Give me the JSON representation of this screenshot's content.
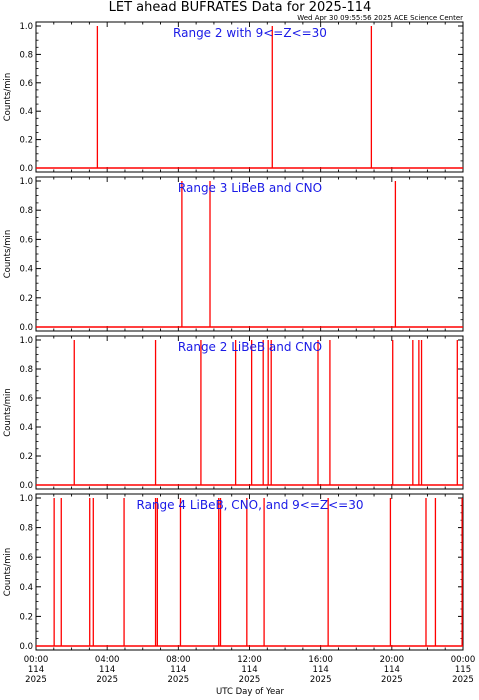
{
  "header": {
    "title": "LET ahead BUFRATES Data for 2025-114",
    "stamp": "Wed Apr 30 09:55:56 2025 ACE Science Center"
  },
  "colors": {
    "series": "#ff0000",
    "panel_title": "#1a1ae6",
    "axes": "#000000"
  },
  "chart_data": [
    {
      "type": "line",
      "title": "Range 2 with 9<=Z<=30",
      "ylabel": "Counts/min",
      "ylim": [
        0,
        1.0
      ],
      "yticks": [
        "0.0",
        "0.2",
        "0.4",
        "0.6",
        "0.8",
        "1.0"
      ],
      "xlim": [
        0,
        24
      ],
      "spikes_hours": [
        3.45,
        13.28,
        18.85
      ]
    },
    {
      "type": "line",
      "title": "Range 3 LiBeB and CNO",
      "ylabel": "Counts/min",
      "ylim": [
        0,
        1.0
      ],
      "yticks": [
        "0.0",
        "0.2",
        "0.4",
        "0.6",
        "0.8",
        "1.0"
      ],
      "xlim": [
        0,
        24
      ],
      "spikes_hours": [
        8.2,
        9.78,
        20.2
      ]
    },
    {
      "type": "line",
      "title": "Range 2 LiBeB and CNO",
      "ylabel": "Counts/min",
      "ylim": [
        0,
        1.0
      ],
      "yticks": [
        "0.0",
        "0.2",
        "0.4",
        "0.6",
        "0.8",
        "1.0"
      ],
      "xlim": [
        0,
        24
      ],
      "spikes_hours": [
        2.15,
        6.72,
        9.27,
        11.22,
        12.12,
        12.77,
        13.05,
        13.22,
        15.85,
        16.52,
        20.05,
        21.18,
        21.52,
        21.67,
        23.68
      ]
    },
    {
      "type": "line",
      "title": "Range 4 LiBeB, CNO, and 9<=Z<=30",
      "ylabel": "Counts/min",
      "ylim": [
        0,
        1.0
      ],
      "yticks": [
        "0.0",
        "0.2",
        "0.4",
        "0.6",
        "0.8",
        "1.0"
      ],
      "xlim": [
        0,
        24
      ],
      "spikes_hours": [
        1.02,
        1.42,
        3.02,
        3.22,
        4.95,
        6.72,
        6.82,
        8.12,
        10.27,
        10.37,
        11.85,
        12.82,
        16.42,
        19.92,
        21.92,
        22.45,
        23.95
      ]
    }
  ],
  "x_axis": {
    "label": "UTC Day of Year",
    "ticks": [
      {
        "hour": 0,
        "time": "00:00",
        "day": "114",
        "year": "2025"
      },
      {
        "hour": 4,
        "time": "04:00",
        "day": "114",
        "year": "2025"
      },
      {
        "hour": 8,
        "time": "08:00",
        "day": "114",
        "year": "2025"
      },
      {
        "hour": 12,
        "time": "12:00",
        "day": "114",
        "year": "2025"
      },
      {
        "hour": 16,
        "time": "16:00",
        "day": "114",
        "year": "2025"
      },
      {
        "hour": 20,
        "time": "20:00",
        "day": "114",
        "year": "2025"
      },
      {
        "hour": 24,
        "time": "00:00",
        "day": "115",
        "year": "2025"
      }
    ]
  }
}
